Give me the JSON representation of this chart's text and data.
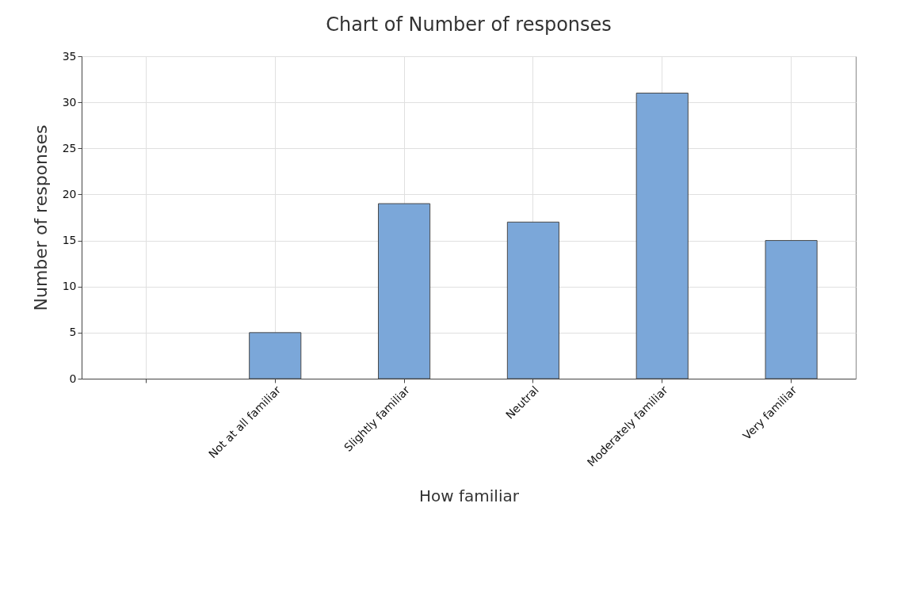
{
  "chart_data": {
    "type": "bar",
    "title": "Chart of Number of responses",
    "xlabel": "How familiar",
    "ylabel": "Number of responses",
    "categories": [
      null,
      "Not at all familiar",
      "Slightly familiar",
      "Neutral",
      "Moderately familiar",
      "Very familiar"
    ],
    "values": [
      null,
      5,
      19,
      17,
      31,
      15
    ],
    "color": "#7ba7d9",
    "ylim": [
      0,
      35
    ],
    "yticks": [
      0,
      5,
      10,
      15,
      20,
      25,
      30,
      35
    ],
    "grid": true
  }
}
